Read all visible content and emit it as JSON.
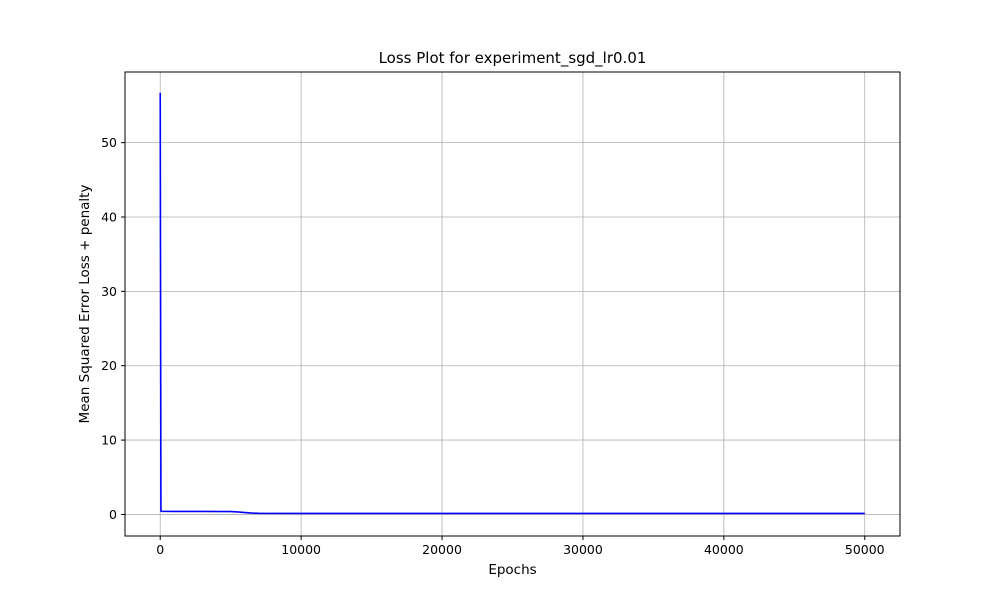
{
  "chart_data": {
    "type": "line",
    "title": "Loss Plot for experiment_sgd_lr0.01",
    "xlabel": "Epochs",
    "ylabel": "Mean Squared Error Loss + penalty",
    "xlim": [
      -2500,
      52500
    ],
    "ylim": [
      -2.9,
      59.5
    ],
    "xticks": [
      0,
      10000,
      20000,
      30000,
      40000,
      50000
    ],
    "yticks": [
      0,
      10,
      20,
      30,
      40,
      50
    ],
    "grid": true,
    "legend": "none",
    "series": [
      {
        "color": "#0000ff",
        "x": [
          0,
          50,
          100,
          1000,
          3000,
          5000,
          5500,
          6000,
          6500,
          7000,
          10000,
          20000,
          30000,
          40000,
          50000
        ],
        "y": [
          56.7,
          0.45,
          0.42,
          0.4,
          0.4,
          0.38,
          0.33,
          0.25,
          0.18,
          0.15,
          0.14,
          0.14,
          0.14,
          0.14,
          0.14
        ]
      }
    ]
  }
}
